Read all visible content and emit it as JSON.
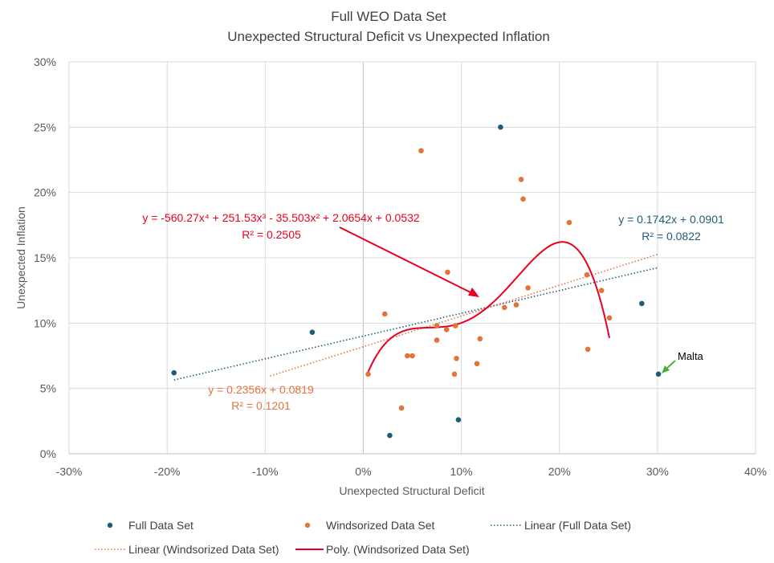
{
  "chart_data": {
    "type": "scatter",
    "title": "Full WEO Data Set",
    "subtitle": "Unexpected Structural Deficit vs Unexpected Inflation",
    "xlabel": "Unexpected Structural Deficit",
    "ylabel": "Unexpected Inflation",
    "xlim": [
      -0.3,
      0.4
    ],
    "ylim": [
      0,
      0.3
    ],
    "x_ticks": [
      -0.3,
      -0.2,
      -0.1,
      0,
      0.1,
      0.2,
      0.3,
      0.4
    ],
    "x_tick_labels": [
      "-30%",
      "-20%",
      "-10%",
      "0%",
      "10%",
      "20%",
      "30%",
      "40%"
    ],
    "y_ticks": [
      0,
      0.05,
      0.1,
      0.15,
      0.2,
      0.25,
      0.3
    ],
    "y_tick_labels": [
      "0%",
      "5%",
      "10%",
      "15%",
      "20%",
      "25%",
      "30%"
    ],
    "grid": true,
    "legend_position": "bottom",
    "colors": {
      "full": "#1f5c7a",
      "wins": "#e2733a",
      "poly": "#e8001c",
      "annotation_arrow": "#e8001c",
      "malta_arrow": "#4caf3a",
      "grid": "#d9d9d9",
      "axis_text": "#595959"
    },
    "series": [
      {
        "name": "Full Data Set",
        "kind": "points",
        "points": [
          [
            -0.193,
            0.062
          ],
          [
            -0.052,
            0.093
          ],
          [
            0.027,
            0.014
          ],
          [
            0.097,
            0.026
          ],
          [
            0.14,
            0.25
          ],
          [
            0.284,
            0.115
          ],
          [
            0.301,
            0.061
          ]
        ]
      },
      {
        "name": "Windsorized Data Set",
        "kind": "points",
        "points": [
          [
            0.005,
            0.061
          ],
          [
            0.022,
            0.107
          ],
          [
            0.039,
            0.035
          ],
          [
            0.045,
            0.075
          ],
          [
            0.05,
            0.075
          ],
          [
            0.059,
            0.232
          ],
          [
            0.075,
            0.098
          ],
          [
            0.075,
            0.087
          ],
          [
            0.085,
            0.095
          ],
          [
            0.086,
            0.139
          ],
          [
            0.093,
            0.061
          ],
          [
            0.094,
            0.098
          ],
          [
            0.095,
            0.073
          ],
          [
            0.116,
            0.069
          ],
          [
            0.119,
            0.088
          ],
          [
            0.144,
            0.112
          ],
          [
            0.156,
            0.114
          ],
          [
            0.161,
            0.21
          ],
          [
            0.163,
            0.195
          ],
          [
            0.168,
            0.127
          ],
          [
            0.21,
            0.177
          ],
          [
            0.228,
            0.137
          ],
          [
            0.229,
            0.08
          ],
          [
            0.243,
            0.125
          ],
          [
            0.251,
            0.104
          ]
        ]
      },
      {
        "name": "Linear (Full Data Set)",
        "kind": "linear",
        "slope": 0.1742,
        "intercept": 0.0901,
        "x_range": [
          -0.193,
          0.301
        ]
      },
      {
        "name": "Linear (Windsorized Data Set)",
        "kind": "linear",
        "slope": 0.2356,
        "intercept": 0.0819,
        "x_range": [
          -0.095,
          0.301
        ]
      },
      {
        "name": "Poly. (Windsorized Data Set)",
        "kind": "poly",
        "coefficients": [
          0.0532,
          2.0654,
          -35.503,
          251.53,
          -560.27
        ],
        "x_range": [
          0.005,
          0.251
        ]
      }
    ],
    "annotations": {
      "poly_equation": "y = -560.27x⁴ + 251.53x³ - 35.503x² + 2.0654x + 0.0532",
      "poly_r2": "R² = 0.2505",
      "full_equation": "y = 0.1742x + 0.0901",
      "full_r2": "R² = 0.0822",
      "wins_equation": "y = 0.2356x + 0.0819",
      "wins_r2": "R² = 0.1201",
      "malta": "Malta"
    }
  }
}
